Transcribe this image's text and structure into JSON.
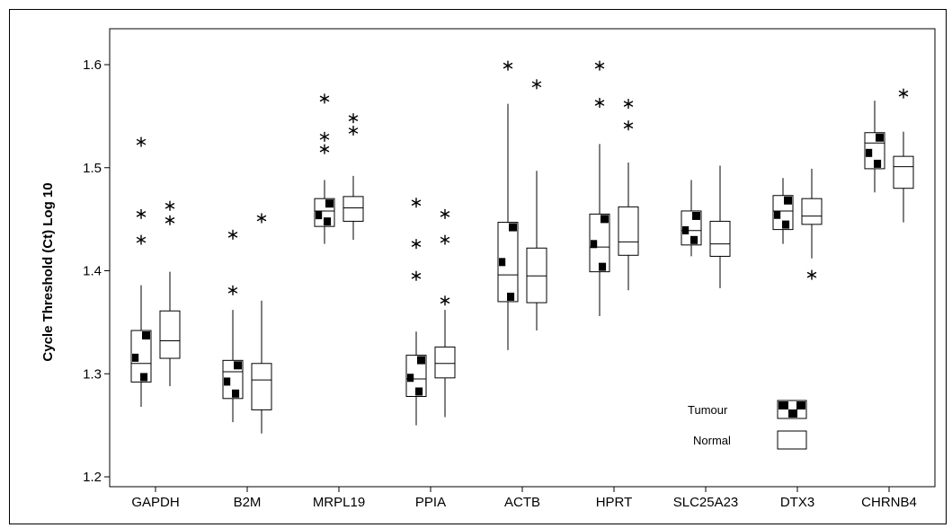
{
  "chart_data": {
    "type": "boxplot",
    "title": "",
    "ylabel": "Cycle Threshold (Ct) Log 10",
    "xlabel": "",
    "ylim": [
      1.2,
      1.6
    ],
    "yticks": [
      1.2,
      1.3,
      1.4,
      1.5,
      1.6
    ],
    "ytick_labels": [
      "1.2",
      "1.3",
      "1.4",
      "1.5",
      "1.6"
    ],
    "grid": false,
    "legend_position": "bottom-right",
    "categories": [
      "GAPDH",
      "B2M",
      "MRPL19",
      "PPIA",
      "ACTB",
      "HPRT",
      "SLC25A23",
      "DTX3",
      "CHRNB4"
    ],
    "series": [
      {
        "name": "Tumour",
        "boxes": [
          {
            "min": 1.268,
            "q1": 1.292,
            "median": 1.31,
            "q3": 1.342,
            "max": 1.386,
            "outliers": [
              1.43,
              1.455,
              1.525
            ]
          },
          {
            "min": 1.253,
            "q1": 1.276,
            "median": 1.302,
            "q3": 1.313,
            "max": 1.362,
            "outliers": [
              1.381,
              1.435
            ]
          },
          {
            "min": 1.426,
            "q1": 1.443,
            "median": 1.458,
            "q3": 1.47,
            "max": 1.488,
            "outliers": [
              1.518,
              1.53,
              1.567
            ]
          },
          {
            "min": 1.25,
            "q1": 1.278,
            "median": 1.295,
            "q3": 1.318,
            "max": 1.341,
            "outliers": [
              1.395,
              1.426,
              1.466
            ]
          },
          {
            "min": 1.323,
            "q1": 1.37,
            "median": 1.396,
            "q3": 1.447,
            "max": 1.562,
            "outliers": [
              1.599
            ]
          },
          {
            "min": 1.356,
            "q1": 1.399,
            "median": 1.423,
            "q3": 1.455,
            "max": 1.523,
            "outliers": [
              1.563,
              1.599
            ]
          },
          {
            "min": 1.414,
            "q1": 1.425,
            "median": 1.439,
            "q3": 1.458,
            "max": 1.488,
            "outliers": []
          },
          {
            "min": 1.426,
            "q1": 1.44,
            "median": 1.458,
            "q3": 1.473,
            "max": 1.49,
            "outliers": []
          },
          {
            "min": 1.476,
            "q1": 1.499,
            "median": 1.524,
            "q3": 1.534,
            "max": 1.565,
            "outliers": []
          }
        ]
      },
      {
        "name": "Normal",
        "boxes": [
          {
            "min": 1.288,
            "q1": 1.315,
            "median": 1.332,
            "q3": 1.361,
            "max": 1.399,
            "outliers": [
              1.449,
              1.463
            ]
          },
          {
            "min": 1.242,
            "q1": 1.265,
            "median": 1.294,
            "q3": 1.31,
            "max": 1.371,
            "outliers": [
              1.451
            ]
          },
          {
            "min": 1.43,
            "q1": 1.448,
            "median": 1.461,
            "q3": 1.472,
            "max": 1.492,
            "outliers": [
              1.536,
              1.548
            ]
          },
          {
            "min": 1.258,
            "q1": 1.296,
            "median": 1.31,
            "q3": 1.326,
            "max": 1.362,
            "outliers": [
              1.371,
              1.43,
              1.455
            ]
          },
          {
            "min": 1.342,
            "q1": 1.369,
            "median": 1.395,
            "q3": 1.422,
            "max": 1.497,
            "outliers": [
              1.581
            ]
          },
          {
            "min": 1.381,
            "q1": 1.415,
            "median": 1.428,
            "q3": 1.462,
            "max": 1.505,
            "outliers": [
              1.541,
              1.562
            ]
          },
          {
            "min": 1.383,
            "q1": 1.414,
            "median": 1.426,
            "q3": 1.448,
            "max": 1.502,
            "outliers": []
          },
          {
            "min": 1.412,
            "q1": 1.445,
            "median": 1.453,
            "q3": 1.47,
            "max": 1.499,
            "outliers": [
              1.396
            ]
          },
          {
            "min": 1.447,
            "q1": 1.48,
            "median": 1.501,
            "q3": 1.511,
            "max": 1.535,
            "outliers": [
              1.572
            ]
          }
        ]
      }
    ]
  }
}
